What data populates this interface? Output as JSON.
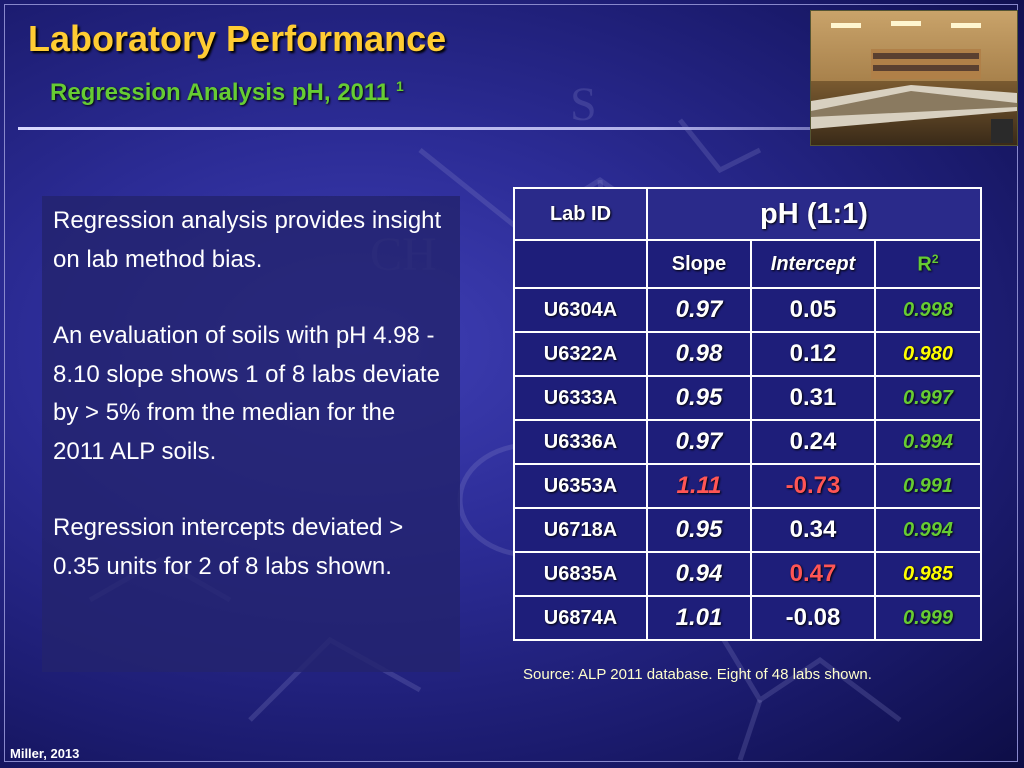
{
  "slide": {
    "title": "Laboratory Performance",
    "subtitle": "Regression Analysis pH,  2011",
    "subtitle_sup": "1",
    "credit": "Miller, 2013",
    "source": "Source: ALP 2011 database. Eight of 48 labs shown."
  },
  "text_panel": {
    "paragraphs": [
      "Regression analysis provides insight on lab method bias.",
      "An evaluation of soils with pH 4.98 - 8.10 slope shows 1 of 8 labs deviate by > 5%  from the median for the 2011 ALP soils.",
      "Regression intercepts deviated > 0.35 units for 2 of 8 labs shown."
    ]
  },
  "table": {
    "header_lab_id": "Lab ID",
    "header_group": "pH (1:1)",
    "header_slope": "Slope",
    "header_intercept": "Intercept",
    "header_r2": "R",
    "header_r2_sup": "2",
    "rows": [
      {
        "lab_id": "U6304A",
        "slope": "0.97",
        "intercept": "0.05",
        "r2": "0.998"
      },
      {
        "lab_id": "U6322A",
        "slope": "0.98",
        "intercept": "0.12",
        "r2": "0.980"
      },
      {
        "lab_id": "U6333A",
        "slope": "0.95",
        "intercept": "0.31",
        "r2": "0.997"
      },
      {
        "lab_id": "U6336A",
        "slope": "0.97",
        "intercept": "0.24",
        "r2": "0.994"
      },
      {
        "lab_id": "U6353A",
        "slope": "1.11",
        "intercept": "-0.73",
        "r2": "0.991"
      },
      {
        "lab_id": "U6718A",
        "slope": "0.95",
        "intercept": "0.34",
        "r2": "0.994"
      },
      {
        "lab_id": "U6835A",
        "slope": "0.94",
        "intercept": "0.47",
        "r2": "0.985"
      },
      {
        "lab_id": "U6874A",
        "slope": "1.01",
        "intercept": "-0.08",
        "r2": "0.999"
      }
    ]
  },
  "colors": {
    "title": "#ffcc33",
    "subtitle": "#66cc33",
    "r2_value": "#66cc33",
    "highlight_red": "#ff5555",
    "highlight_yellow": "#ffff00",
    "background": "#2c2c96"
  }
}
